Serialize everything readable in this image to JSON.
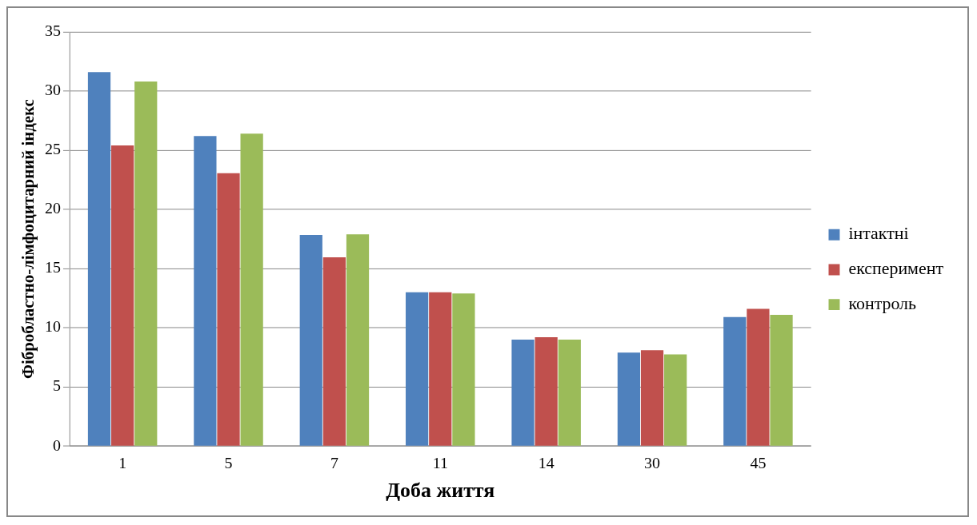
{
  "chart_data": {
    "type": "bar",
    "xlabel": "Доба життя",
    "ylabel": "Фібробластно-лімфоцитарний індекс",
    "categories": [
      "1",
      "5",
      "7",
      "11",
      "14",
      "30",
      "45"
    ],
    "series": [
      {
        "name": "інтактні",
        "color": "#4f81bd",
        "values": [
          31.6,
          26.2,
          17.85,
          13.0,
          9.0,
          7.9,
          10.9
        ]
      },
      {
        "name": "експеримент",
        "color": "#c0504d",
        "values": [
          25.4,
          23.05,
          15.95,
          13.0,
          9.2,
          8.1,
          11.6
        ]
      },
      {
        "name": "контроль",
        "color": "#9bbb59",
        "values": [
          30.8,
          26.4,
          17.9,
          12.9,
          9.0,
          7.75,
          11.1
        ]
      }
    ],
    "ylim": [
      0,
      35
    ],
    "yticks": [
      0,
      5,
      10,
      15,
      20,
      25,
      30,
      35
    ],
    "grid": "y",
    "legend": "right"
  }
}
